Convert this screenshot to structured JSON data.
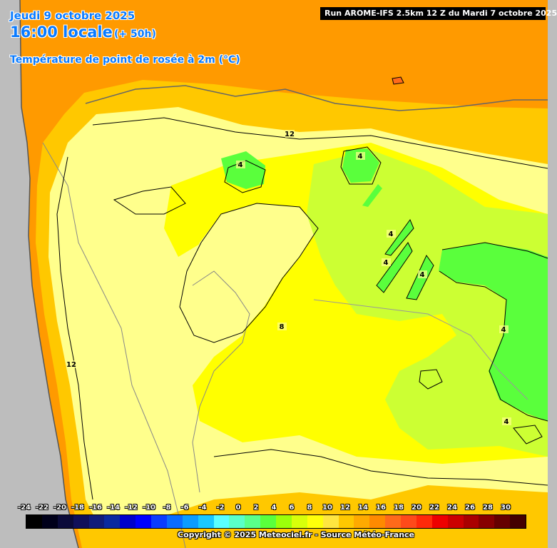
{
  "header": {
    "date": "Jeudi 9 octobre 2025",
    "time": "16:00 locale",
    "lead": "(+ 50h)",
    "parameter": "Température de point de rosée à 2m (°C)",
    "run": "Run AROME-IFS 2.5km 12 Z du Mardi 7 octobre 2025"
  },
  "contour_labels": [
    "12",
    "4",
    "4",
    "4",
    "4",
    "4",
    "4",
    "8",
    "4",
    "12"
  ],
  "legend": {
    "ticks": [
      "-24",
      "-22",
      "-20",
      "-18",
      "-16",
      "-14",
      "-12",
      "-10",
      "-8",
      "-6",
      "-4",
      "-2",
      "0",
      "2",
      "4",
      "6",
      "8",
      "10",
      "12",
      "14",
      "16",
      "18",
      "20",
      "22",
      "24",
      "26",
      "28",
      "30"
    ],
    "colors": [
      "#000000",
      "#00001a",
      "#0a0a3a",
      "#10105a",
      "#101c7a",
      "#0a2aa0",
      "#0000cc",
      "#0000ff",
      "#0a3cff",
      "#0a6cff",
      "#0a9cff",
      "#1ac8ff",
      "#5affff",
      "#5affc8",
      "#5aff8a",
      "#5aff3c",
      "#9cff0a",
      "#d8ff0a",
      "#ffff0a",
      "#ffe640",
      "#ffc800",
      "#ffaa00",
      "#ff8a00",
      "#ff6a1a",
      "#ff4a1a",
      "#ff2a0a",
      "#ee0000",
      "#cc0000",
      "#aa0000",
      "#880000",
      "#660000",
      "#440000"
    ]
  },
  "copyright": "Copyright © 2025 Meteociel.fr - Source Météo-France",
  "colors": {
    "orange": "#ff9a00",
    "light_orange": "#ffc800",
    "pale_yellow": "#ffff8c",
    "yellow": "#ffff00",
    "yellow_green": "#ccff33",
    "green": "#5aff3c",
    "ocean_gray": "#bdbdbd"
  }
}
